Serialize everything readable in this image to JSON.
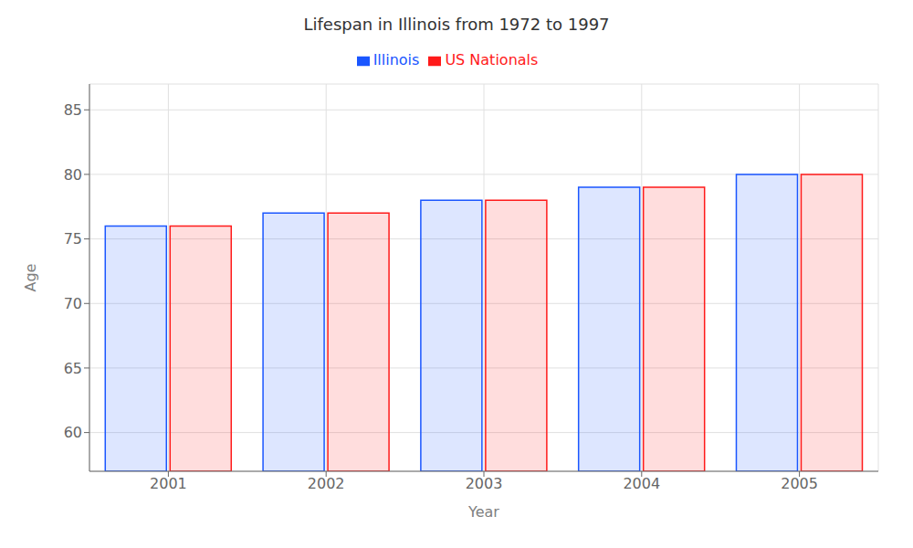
{
  "chart_data": {
    "type": "bar",
    "title": "Lifespan in Illinois from 1972 to 1997",
    "xlabel": "Year",
    "ylabel": "Age",
    "categories": [
      "2001",
      "2002",
      "2003",
      "2004",
      "2005"
    ],
    "series": [
      {
        "name": "Illinois",
        "color": "#1a56ff",
        "values": [
          76,
          77,
          78,
          79,
          80
        ]
      },
      {
        "name": "US Nationals",
        "color": "#ff1a1a",
        "values": [
          76,
          77,
          78,
          79,
          80
        ]
      }
    ],
    "ylim": [
      57,
      87
    ],
    "yticks": [
      60,
      65,
      70,
      75,
      80,
      85
    ],
    "grid": true,
    "legend": "top"
  }
}
